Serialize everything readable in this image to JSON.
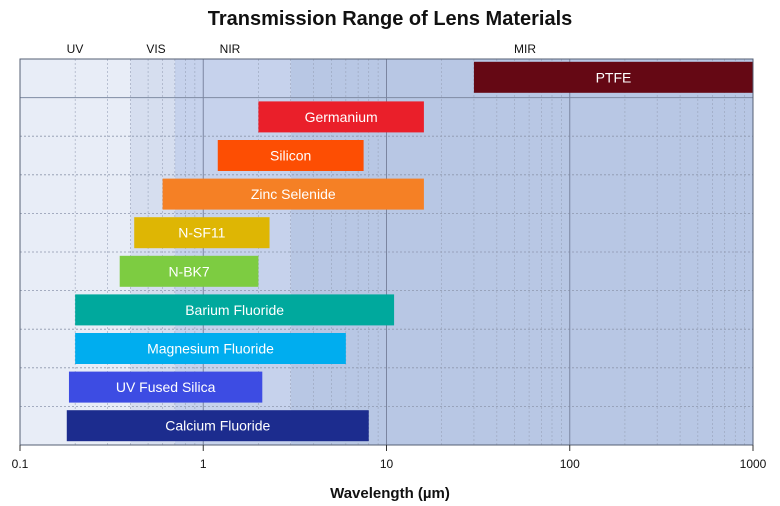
{
  "chart_data": {
    "type": "bar",
    "orientation": "horizontal-range",
    "title": "Transmission Range of Lens Materials",
    "xlabel": "Wavelength (µm)",
    "x_scale": "log",
    "xlim": [
      0.1,
      1000
    ],
    "x_ticks": [
      {
        "value": 0.1,
        "label": "0.1"
      },
      {
        "value": 1,
        "label": "1"
      },
      {
        "value": 10,
        "label": "10"
      },
      {
        "value": 100,
        "label": "100"
      },
      {
        "value": 1000,
        "label": "1000"
      }
    ],
    "grid": true,
    "regions": [
      {
        "name": "UV",
        "start": 0.1,
        "end": 0.4,
        "color": "#e8edf7"
      },
      {
        "name": "VIS",
        "start": 0.4,
        "end": 0.7,
        "color": "#d6deef"
      },
      {
        "name": "NIR",
        "start": 0.7,
        "end": 3,
        "color": "#c6d2ec"
      },
      {
        "name": "MIR",
        "start": 3,
        "end": 1000,
        "color": "#b8c7e4"
      }
    ],
    "series": [
      {
        "name": "PTFE",
        "start": 30,
        "end": 1000,
        "color": "#650814"
      },
      {
        "name": "Germanium",
        "start": 2,
        "end": 16,
        "color": "#ea1f2a"
      },
      {
        "name": "Silicon",
        "start": 1.2,
        "end": 7.5,
        "color": "#fd4e03"
      },
      {
        "name": "Zinc Selenide",
        "start": 0.6,
        "end": 16,
        "color": "#f58025"
      },
      {
        "name": "N-SF11",
        "start": 0.42,
        "end": 2.3,
        "color": "#deb604"
      },
      {
        "name": "N-BK7",
        "start": 0.35,
        "end": 2,
        "color": "#7dcc41"
      },
      {
        "name": "Barium Fluoride",
        "start": 0.2,
        "end": 11,
        "color": "#00a99d"
      },
      {
        "name": "Magnesium Fluoride",
        "start": 0.2,
        "end": 6,
        "color": "#00adef"
      },
      {
        "name": "UV Fused Silica",
        "start": 0.185,
        "end": 2.1,
        "color": "#3d4ce3"
      },
      {
        "name": "Calcium Fluoride",
        "start": 0.18,
        "end": 8,
        "color": "#1c2c8e"
      }
    ]
  }
}
